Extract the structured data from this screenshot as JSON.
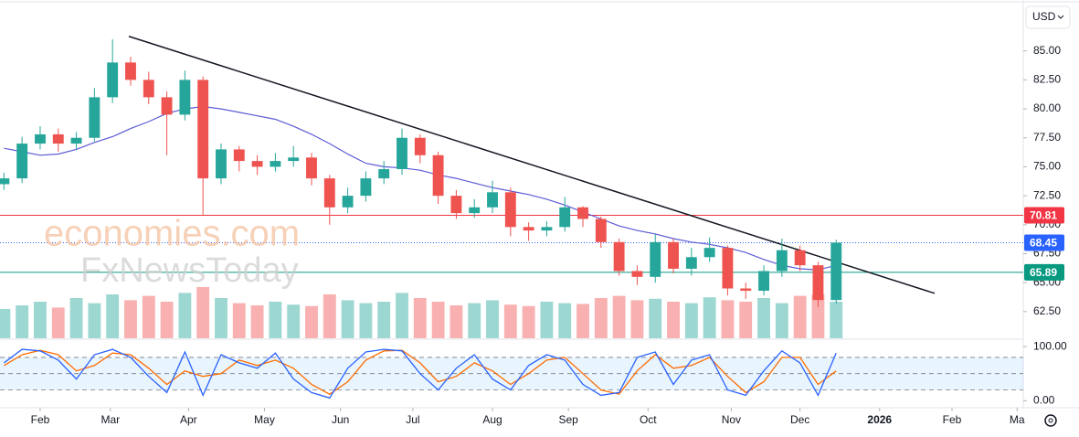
{
  "chart_data": {
    "type": "candlestick",
    "currency": "USD",
    "watermarks": [
      "economies.com",
      "FxNewsToday"
    ],
    "x": [
      -10,
      -5,
      0,
      5,
      10,
      15,
      20,
      25,
      30,
      35,
      40,
      45,
      50,
      55,
      60,
      65,
      70,
      75,
      80,
      85,
      90,
      95,
      100,
      105,
      110,
      115,
      120,
      125,
      130,
      135,
      140,
      145,
      150,
      155,
      160,
      165,
      170,
      175,
      180,
      185,
      190,
      195,
      200,
      205,
      210,
      215,
      220
    ],
    "open": [
      73.5,
      74.0,
      77.0,
      77.8,
      77.0,
      77.5,
      81.0,
      84.0,
      82.5,
      81.0,
      79.5,
      82.5,
      74.0,
      76.5,
      75.5,
      75.0,
      75.5,
      75.8,
      74.0,
      71.5,
      72.5,
      74.0,
      74.8,
      77.5,
      76.0,
      72.5,
      71.0,
      71.5,
      72.8,
      69.8,
      69.5,
      69.8,
      71.5,
      70.5,
      68.5,
      66.0,
      65.5,
      68.5,
      66.2,
      67.2,
      68.0,
      64.5,
      64.3,
      66.0,
      67.8,
      66.5,
      63.5
    ],
    "high": [
      74.5,
      77.6,
      78.5,
      78.3,
      78.0,
      81.8,
      86.0,
      84.5,
      83.2,
      81.5,
      83.3,
      82.8,
      77.0,
      76.8,
      76.0,
      76.2,
      76.8,
      76.2,
      74.3,
      73.2,
      74.6,
      75.5,
      78.3,
      77.8,
      76.3,
      73.0,
      72.2,
      73.8,
      73.2,
      70.2,
      70.3,
      72.4,
      71.6,
      70.7,
      68.8,
      66.5,
      69.2,
      68.8,
      68.0,
      68.9,
      68.2,
      65.0,
      66.5,
      68.8,
      68.2,
      66.8,
      68.7
    ],
    "low": [
      73.0,
      73.6,
      76.5,
      76.3,
      76.5,
      77.2,
      80.5,
      82.0,
      80.4,
      76.0,
      79.0,
      70.8,
      73.5,
      74.6,
      74.3,
      74.6,
      75.0,
      73.4,
      70.0,
      71.0,
      72.0,
      73.5,
      74.3,
      75.3,
      71.8,
      70.5,
      70.6,
      71.0,
      69.0,
      68.6,
      69.0,
      69.4,
      69.8,
      68.0,
      65.6,
      64.8,
      65.0,
      65.8,
      65.6,
      66.8,
      63.9,
      63.6,
      63.9,
      65.5,
      66.0,
      62.9,
      63.2
    ],
    "close": [
      74.0,
      77.0,
      77.8,
      77.0,
      77.5,
      81.0,
      84.0,
      82.5,
      81.0,
      79.5,
      82.5,
      74.0,
      76.5,
      75.5,
      75.0,
      75.5,
      75.8,
      74.0,
      71.5,
      72.5,
      74.0,
      74.8,
      77.5,
      76.0,
      72.5,
      71.0,
      71.5,
      72.8,
      69.8,
      69.5,
      69.8,
      71.5,
      70.5,
      68.5,
      66.0,
      65.5,
      68.5,
      66.2,
      67.2,
      68.0,
      64.5,
      64.3,
      66.0,
      67.8,
      66.5,
      63.5,
      68.45
    ],
    "up_color": "#26a69a",
    "down_color": "#ef5350",
    "ma": [
      76.6,
      76.3,
      76.0,
      76.1,
      76.5,
      77.1,
      77.6,
      78.3,
      78.9,
      79.6,
      80.0,
      80.2,
      80.0,
      79.7,
      79.4,
      79.1,
      78.5,
      77.8,
      77.0,
      76.1,
      75.3,
      75.0,
      74.9,
      74.7,
      74.3,
      74.0,
      73.6,
      73.2,
      72.9,
      72.6,
      72.2,
      71.7,
      71.1,
      70.5,
      69.9,
      69.5,
      69.2,
      68.8,
      68.5,
      68.3,
      68.0,
      67.6,
      67.0,
      66.5,
      66.2,
      66.1,
      66.5
    ],
    "ma_color": "#5b5bd6",
    "trendline": {
      "x": [
        24.5,
        247.2
      ],
      "y": [
        86.26,
        64.08
      ]
    },
    "levels": [
      {
        "value": 70.81,
        "color": "#f23645",
        "style": "solid"
      },
      {
        "value": 68.45,
        "color": "#2962ff",
        "style": "dotted"
      },
      {
        "value": 65.89,
        "color": "#089981",
        "style": "solid"
      }
    ],
    "volume": [
      40,
      45,
      50,
      42,
      55,
      48,
      60,
      52,
      58,
      50,
      62,
      70,
      55,
      48,
      45,
      50,
      46,
      44,
      60,
      52,
      48,
      50,
      62,
      55,
      50,
      45,
      48,
      52,
      46,
      44,
      50,
      48,
      47,
      55,
      58,
      52,
      54,
      50,
      48,
      56,
      52,
      50,
      55,
      48,
      58,
      60,
      50
    ],
    "volume_lim": [
      0,
      100
    ],
    "stoch_k": [
      70,
      95,
      92,
      75,
      40,
      85,
      95,
      80,
      45,
      15,
      90,
      10,
      85,
      70,
      60,
      88,
      40,
      15,
      5,
      60,
      90,
      95,
      92,
      50,
      20,
      60,
      85,
      40,
      20,
      65,
      85,
      75,
      30,
      10,
      15,
      80,
      90,
      30,
      75,
      85,
      20,
      10,
      55,
      92,
      70,
      10,
      88
    ],
    "stoch_d": [
      65,
      85,
      93,
      85,
      55,
      65,
      88,
      85,
      60,
      30,
      55,
      45,
      50,
      75,
      65,
      75,
      60,
      30,
      12,
      35,
      75,
      92,
      93,
      70,
      35,
      45,
      70,
      55,
      30,
      50,
      75,
      80,
      50,
      20,
      12,
      55,
      85,
      60,
      65,
      80,
      45,
      15,
      35,
      80,
      80,
      30,
      55
    ],
    "stoch_k_color": "#2962ff",
    "stoch_d_color": "#ff6d00",
    "stoch_bands": [
      80,
      50,
      20
    ],
    "stoch_ylim": [
      -13,
      112
    ],
    "stoch_ticks": [
      {
        "value": 100,
        "label": "100.00"
      },
      {
        "value": 0,
        "label": "0.00"
      }
    ],
    "xlim": [
      -11.1,
      271.7
    ],
    "xticks": [
      {
        "value": 0,
        "label": "Feb"
      },
      {
        "value": 19.4,
        "label": "Mar"
      },
      {
        "value": 41,
        "label": "Apr"
      },
      {
        "value": 62,
        "label": "May"
      },
      {
        "value": 83,
        "label": "Jun"
      },
      {
        "value": 103,
        "label": "Jul"
      },
      {
        "value": 125,
        "label": "Aug"
      },
      {
        "value": 146,
        "label": "Sep"
      },
      {
        "value": 168,
        "label": "Oct"
      },
      {
        "value": 191,
        "label": "Nov"
      },
      {
        "value": 210,
        "label": "Dec"
      },
      {
        "value": 232,
        "label": "2026"
      },
      {
        "value": 252,
        "label": "Feb"
      },
      {
        "value": 270,
        "label": "Ma"
      }
    ],
    "ylim": [
      60.2,
      89.0
    ],
    "yticks": [
      {
        "value": 62.5,
        "label": "62.50"
      },
      {
        "value": 65,
        "label": "65.00"
      },
      {
        "value": 67.5,
        "label": "67.50"
      },
      {
        "value": 70,
        "label": "70.00"
      },
      {
        "value": 72.5,
        "label": "72.50"
      },
      {
        "value": 75,
        "label": "75.00"
      },
      {
        "value": 77.5,
        "label": "77.50"
      },
      {
        "value": 80,
        "label": "80.00"
      },
      {
        "value": 82.5,
        "label": "82.50"
      },
      {
        "value": 85,
        "label": "85.00"
      }
    ]
  }
}
